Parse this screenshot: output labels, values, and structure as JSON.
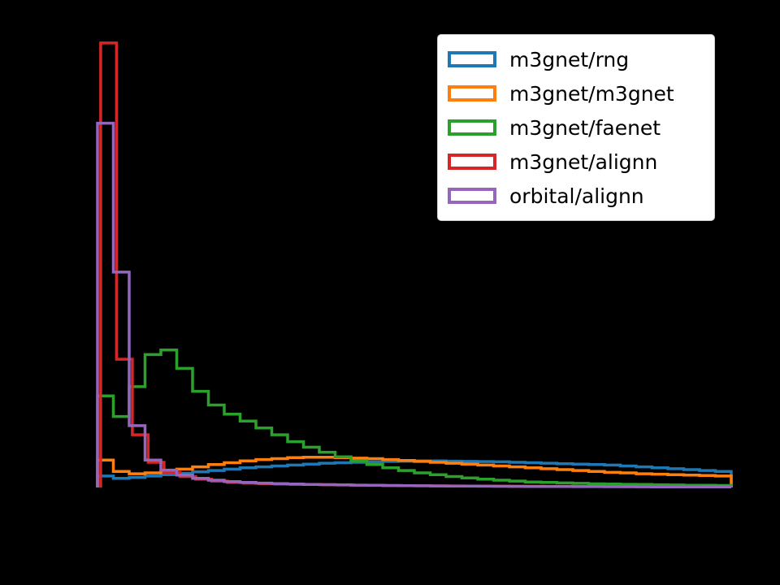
{
  "figure": {
    "background": "#000000"
  },
  "chart_data": {
    "type": "histogram-step",
    "title": "",
    "xlabel": "",
    "ylabel": "",
    "xlim": [
      0,
      1
    ],
    "ylim": [
      0,
      10
    ],
    "grid": false,
    "legend_position": "upper right",
    "axes_visible": false,
    "series": [
      {
        "name": "m3gnet/rng",
        "color": "#1f77b4",
        "bin_start": 0.0,
        "bin_width": 0.025,
        "density": [
          0.25,
          0.2,
          0.22,
          0.25,
          0.28,
          0.31,
          0.34,
          0.37,
          0.4,
          0.43,
          0.45,
          0.47,
          0.49,
          0.51,
          0.53,
          0.54,
          0.55,
          0.56,
          0.57,
          0.575,
          0.58,
          0.58,
          0.575,
          0.57,
          0.565,
          0.56,
          0.55,
          0.54,
          0.53,
          0.52,
          0.51,
          0.5,
          0.49,
          0.47,
          0.45,
          0.43,
          0.41,
          0.39,
          0.37,
          0.35
        ]
      },
      {
        "name": "m3gnet/m3gnet",
        "color": "#ff7f0e",
        "bin_start": 0.0,
        "bin_width": 0.025,
        "density": [
          0.6,
          0.35,
          0.3,
          0.32,
          0.36,
          0.4,
          0.45,
          0.5,
          0.54,
          0.58,
          0.61,
          0.63,
          0.65,
          0.66,
          0.66,
          0.65,
          0.64,
          0.63,
          0.61,
          0.59,
          0.57,
          0.55,
          0.53,
          0.51,
          0.49,
          0.47,
          0.45,
          0.43,
          0.41,
          0.39,
          0.37,
          0.35,
          0.33,
          0.32,
          0.3,
          0.29,
          0.28,
          0.27,
          0.26,
          0.25
        ]
      },
      {
        "name": "m3gnet/faenet",
        "color": "#2ca02c",
        "bin_start": 0.0,
        "bin_width": 0.025,
        "density": [
          2.0,
          1.55,
          2.2,
          2.9,
          3.0,
          2.6,
          2.1,
          1.8,
          1.6,
          1.45,
          1.3,
          1.15,
          1.0,
          0.88,
          0.77,
          0.67,
          0.58,
          0.5,
          0.43,
          0.37,
          0.32,
          0.28,
          0.24,
          0.21,
          0.18,
          0.16,
          0.14,
          0.12,
          0.11,
          0.1,
          0.09,
          0.08,
          0.075,
          0.07,
          0.065,
          0.06,
          0.055,
          0.05,
          0.05,
          0.045
        ]
      },
      {
        "name": "m3gnet/alignn",
        "color": "#d62728",
        "bin_start": 0.005,
        "bin_width": 0.025,
        "density": [
          9.7,
          2.8,
          1.15,
          0.55,
          0.33,
          0.24,
          0.18,
          0.14,
          0.11,
          0.095,
          0.085,
          0.075,
          0.07,
          0.065,
          0.06,
          0.055,
          0.05,
          0.047,
          0.044,
          0.041,
          0.038,
          0.036,
          0.034,
          0.032,
          0.03,
          0.028,
          0.027,
          0.026,
          0.025,
          0.024,
          0.023,
          0.022,
          0.021,
          0.02,
          0.019,
          0.018,
          0.017,
          0.016,
          0.015
        ]
      },
      {
        "name": "orbital/alignn",
        "color": "#9467bd",
        "bin_start": 0.0,
        "bin_width": 0.025,
        "density": [
          7.95,
          4.7,
          1.35,
          0.6,
          0.38,
          0.27,
          0.2,
          0.16,
          0.13,
          0.11,
          0.095,
          0.085,
          0.075,
          0.068,
          0.062,
          0.056,
          0.051,
          0.047,
          0.043,
          0.04,
          0.037,
          0.034,
          0.032,
          0.03,
          0.028,
          0.026,
          0.025,
          0.023,
          0.022,
          0.021,
          0.02,
          0.019,
          0.018,
          0.017,
          0.016,
          0.015,
          0.014,
          0.014,
          0.013,
          0.013
        ]
      }
    ]
  }
}
